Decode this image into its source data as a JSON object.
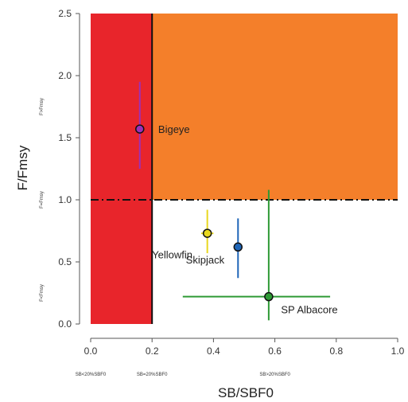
{
  "chart_data": {
    "type": "scatter",
    "xlabel": "SB/SBF0",
    "ylabel": "F/Fmsy",
    "xlim": [
      0.0,
      1.0
    ],
    "ylim": [
      0.0,
      2.5
    ],
    "x_ticks": [
      "0.0",
      "0.2",
      "0.4",
      "0.6",
      "0.8",
      "1.0"
    ],
    "y_ticks": [
      "0.0",
      "0.5",
      "1.0",
      "1.5",
      "2.0",
      "2.5"
    ],
    "zones": [
      {
        "name": "red",
        "x_range": [
          0.0,
          0.2
        ],
        "y_range": [
          0.0,
          2.5
        ],
        "color": "#e8252b"
      },
      {
        "name": "orange",
        "x_range": [
          0.2,
          1.0
        ],
        "y_range": [
          1.0,
          2.5
        ],
        "color": "#f47f2a"
      }
    ],
    "limit_lines": {
      "x": 0.2,
      "y": 1.0
    },
    "x_zone_labels": [
      {
        "text": "SB<20%SBF0",
        "x": 0.0
      },
      {
        "text": "SB=20%SBF0",
        "x": 0.2
      },
      {
        "text": "SB>20%SBF0",
        "x": 0.6
      }
    ],
    "y_zone_labels": [
      {
        "text": "F<Fmsy",
        "y": 0.25
      },
      {
        "text": "F=Fmsy",
        "y": 1.0
      },
      {
        "text": "F>Fmsy",
        "y": 1.75
      }
    ],
    "series": [
      {
        "name": "Bigeye",
        "x": 0.16,
        "y": 1.57,
        "x_err": [
          0.16,
          0.16
        ],
        "y_err": [
          1.25,
          1.95
        ],
        "color": "#9b30b8",
        "label_dx": 0.06,
        "label_dy": 0.0
      },
      {
        "name": "Yellowfin",
        "x": 0.38,
        "y": 0.73,
        "x_err": [
          0.36,
          0.4
        ],
        "y_err": [
          0.57,
          0.92
        ],
        "color": "#e8d81f",
        "label_dx": -0.18,
        "label_dy": -0.17
      },
      {
        "name": "Skipjack",
        "x": 0.48,
        "y": 0.62,
        "x_err": [
          0.47,
          0.49
        ],
        "y_err": [
          0.37,
          0.85
        ],
        "color": "#1f66b8",
        "label_dx": -0.17,
        "label_dy": -0.1
      },
      {
        "name": "SP Albacore",
        "x": 0.58,
        "y": 0.22,
        "x_err": [
          0.3,
          0.78
        ],
        "y_err": [
          0.03,
          1.08
        ],
        "color": "#2e9a35",
        "label_dx": 0.04,
        "label_dy": -0.1
      }
    ]
  }
}
